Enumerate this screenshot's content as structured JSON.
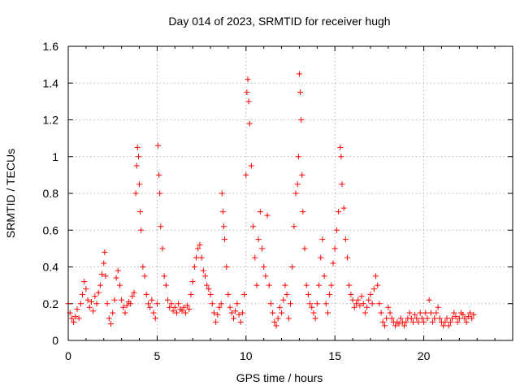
{
  "chart_data": {
    "type": "scatter",
    "title": "Day 014 of 2023, SRMTID for receiver hugh",
    "xlabel": "GPS time / hours",
    "ylabel": "SRMTID / TECUs",
    "xlim": [
      0,
      25
    ],
    "ylim": [
      0,
      1.6
    ],
    "x_ticks": [
      0,
      5,
      10,
      15,
      20
    ],
    "x_tick_labels": [
      "0",
      "5",
      "10",
      "15",
      "20"
    ],
    "y_ticks": [
      0,
      0.2,
      0.4,
      0.6,
      0.8,
      1.0,
      1.2,
      1.4,
      1.6
    ],
    "y_tick_labels": [
      "0",
      "0.2",
      "0.4",
      "0.6",
      "0.8",
      "1",
      "1.2",
      "1.4",
      "1.6"
    ],
    "grid": true,
    "marker": "+",
    "series": [
      {
        "name": "SRMTID",
        "color": "#ff0000",
        "points": [
          [
            0.0,
            0.2
          ],
          [
            0.1,
            0.15
          ],
          [
            0.2,
            0.12
          ],
          [
            0.3,
            0.1
          ],
          [
            0.4,
            0.13
          ],
          [
            0.5,
            0.17
          ],
          [
            0.6,
            0.12
          ],
          [
            0.7,
            0.2
          ],
          [
            0.8,
            0.25
          ],
          [
            0.9,
            0.32
          ],
          [
            1.0,
            0.28
          ],
          [
            1.1,
            0.22
          ],
          [
            1.2,
            0.18
          ],
          [
            1.3,
            0.21
          ],
          [
            1.4,
            0.16
          ],
          [
            1.5,
            0.24
          ],
          [
            1.6,
            0.2
          ],
          [
            1.7,
            0.26
          ],
          [
            1.8,
            0.3
          ],
          [
            1.9,
            0.36
          ],
          [
            2.0,
            0.42
          ],
          [
            2.05,
            0.48
          ],
          [
            2.1,
            0.35
          ],
          [
            2.2,
            0.2
          ],
          [
            2.3,
            0.12
          ],
          [
            2.4,
            0.09
          ],
          [
            2.5,
            0.15
          ],
          [
            2.6,
            0.22
          ],
          [
            2.7,
            0.34
          ],
          [
            2.8,
            0.38
          ],
          [
            2.9,
            0.3
          ],
          [
            3.0,
            0.22
          ],
          [
            3.1,
            0.18
          ],
          [
            3.2,
            0.15
          ],
          [
            3.3,
            0.19
          ],
          [
            3.4,
            0.21
          ],
          [
            3.5,
            0.2
          ],
          [
            3.6,
            0.24
          ],
          [
            3.7,
            0.26
          ],
          [
            3.8,
            0.8
          ],
          [
            3.85,
            0.95
          ],
          [
            3.9,
            1.05
          ],
          [
            3.95,
            1.0
          ],
          [
            4.0,
            0.85
          ],
          [
            4.05,
            0.7
          ],
          [
            4.1,
            0.6
          ],
          [
            4.2,
            0.4
          ],
          [
            4.3,
            0.35
          ],
          [
            4.4,
            0.25
          ],
          [
            4.5,
            0.2
          ],
          [
            4.6,
            0.18
          ],
          [
            4.7,
            0.22
          ],
          [
            4.8,
            0.15
          ],
          [
            4.9,
            0.12
          ],
          [
            5.0,
            0.2
          ],
          [
            5.05,
            1.06
          ],
          [
            5.1,
            0.9
          ],
          [
            5.15,
            0.8
          ],
          [
            5.2,
            0.62
          ],
          [
            5.3,
            0.5
          ],
          [
            5.4,
            0.35
          ],
          [
            5.5,
            0.3
          ],
          [
            5.6,
            0.22
          ],
          [
            5.7,
            0.18
          ],
          [
            5.8,
            0.2
          ],
          [
            5.9,
            0.16
          ],
          [
            6.0,
            0.18
          ],
          [
            6.1,
            0.15
          ],
          [
            6.2,
            0.2
          ],
          [
            6.3,
            0.17
          ],
          [
            6.4,
            0.16
          ],
          [
            6.5,
            0.18
          ],
          [
            6.6,
            0.15
          ],
          [
            6.7,
            0.19
          ],
          [
            6.8,
            0.17
          ],
          [
            6.9,
            0.25
          ],
          [
            7.0,
            0.32
          ],
          [
            7.1,
            0.4
          ],
          [
            7.2,
            0.45
          ],
          [
            7.3,
            0.5
          ],
          [
            7.4,
            0.52
          ],
          [
            7.5,
            0.45
          ],
          [
            7.6,
            0.38
          ],
          [
            7.7,
            0.35
          ],
          [
            7.8,
            0.3
          ],
          [
            7.9,
            0.28
          ],
          [
            8.0,
            0.25
          ],
          [
            8.1,
            0.2
          ],
          [
            8.2,
            0.15
          ],
          [
            8.3,
            0.1
          ],
          [
            8.4,
            0.14
          ],
          [
            8.5,
            0.18
          ],
          [
            8.6,
            0.2
          ],
          [
            8.65,
            0.8
          ],
          [
            8.7,
            0.7
          ],
          [
            8.75,
            0.62
          ],
          [
            8.8,
            0.55
          ],
          [
            8.9,
            0.4
          ],
          [
            9.0,
            0.25
          ],
          [
            9.1,
            0.18
          ],
          [
            9.2,
            0.15
          ],
          [
            9.3,
            0.12
          ],
          [
            9.4,
            0.16
          ],
          [
            9.5,
            0.2
          ],
          [
            9.6,
            0.14
          ],
          [
            9.7,
            0.1
          ],
          [
            9.8,
            0.15
          ],
          [
            9.9,
            0.25
          ],
          [
            10.0,
            0.9
          ],
          [
            10.05,
            1.35
          ],
          [
            10.1,
            1.42
          ],
          [
            10.15,
            1.3
          ],
          [
            10.2,
            1.18
          ],
          [
            10.3,
            0.95
          ],
          [
            10.4,
            0.62
          ],
          [
            10.5,
            0.45
          ],
          [
            10.6,
            0.3
          ],
          [
            10.7,
            0.55
          ],
          [
            10.8,
            0.7
          ],
          [
            10.9,
            0.5
          ],
          [
            11.0,
            0.4
          ],
          [
            11.1,
            0.35
          ],
          [
            11.2,
            0.68
          ],
          [
            11.3,
            0.3
          ],
          [
            11.4,
            0.2
          ],
          [
            11.5,
            0.15
          ],
          [
            11.6,
            0.1
          ],
          [
            11.7,
            0.08
          ],
          [
            11.8,
            0.12
          ],
          [
            11.9,
            0.18
          ],
          [
            12.0,
            0.15
          ],
          [
            12.1,
            0.22
          ],
          [
            12.2,
            0.3
          ],
          [
            12.3,
            0.25
          ],
          [
            12.4,
            0.12
          ],
          [
            12.5,
            0.2
          ],
          [
            12.6,
            0.4
          ],
          [
            12.7,
            0.62
          ],
          [
            12.8,
            0.8
          ],
          [
            12.9,
            0.85
          ],
          [
            12.95,
            1.0
          ],
          [
            13.0,
            1.45
          ],
          [
            13.05,
            1.35
          ],
          [
            13.1,
            1.2
          ],
          [
            13.15,
            0.9
          ],
          [
            13.2,
            0.7
          ],
          [
            13.3,
            0.5
          ],
          [
            13.4,
            0.3
          ],
          [
            13.5,
            0.25
          ],
          [
            13.6,
            0.2
          ],
          [
            13.7,
            0.18
          ],
          [
            13.8,
            0.15
          ],
          [
            13.9,
            0.12
          ],
          [
            14.0,
            0.2
          ],
          [
            14.1,
            0.3
          ],
          [
            14.2,
            0.45
          ],
          [
            14.3,
            0.55
          ],
          [
            14.4,
            0.35
          ],
          [
            14.5,
            0.2
          ],
          [
            14.6,
            0.15
          ],
          [
            14.7,
            0.25
          ],
          [
            14.8,
            0.3
          ],
          [
            14.9,
            0.42
          ],
          [
            15.0,
            0.5
          ],
          [
            15.1,
            0.6
          ],
          [
            15.2,
            0.7
          ],
          [
            15.3,
            1.05
          ],
          [
            15.35,
            1.0
          ],
          [
            15.4,
            0.85
          ],
          [
            15.5,
            0.72
          ],
          [
            15.6,
            0.55
          ],
          [
            15.7,
            0.45
          ],
          [
            15.8,
            0.3
          ],
          [
            15.9,
            0.25
          ],
          [
            16.0,
            0.22
          ],
          [
            16.1,
            0.18
          ],
          [
            16.2,
            0.2
          ],
          [
            16.3,
            0.22
          ],
          [
            16.4,
            0.19
          ],
          [
            16.5,
            0.24
          ],
          [
            16.6,
            0.2
          ],
          [
            16.7,
            0.15
          ],
          [
            16.8,
            0.18
          ],
          [
            16.9,
            0.22
          ],
          [
            17.0,
            0.25
          ],
          [
            17.1,
            0.2
          ],
          [
            17.2,
            0.28
          ],
          [
            17.3,
            0.35
          ],
          [
            17.4,
            0.3
          ],
          [
            17.5,
            0.2
          ],
          [
            17.6,
            0.15
          ],
          [
            17.7,
            0.1
          ],
          [
            17.8,
            0.08
          ],
          [
            17.9,
            0.12
          ],
          [
            18.0,
            0.18
          ],
          [
            18.1,
            0.15
          ],
          [
            18.2,
            0.12
          ],
          [
            18.3,
            0.1
          ],
          [
            18.4,
            0.08
          ],
          [
            18.5,
            0.1
          ],
          [
            18.6,
            0.09
          ],
          [
            18.7,
            0.12
          ],
          [
            18.8,
            0.1
          ],
          [
            18.9,
            0.08
          ],
          [
            19.0,
            0.1
          ],
          [
            19.1,
            0.12
          ],
          [
            19.2,
            0.15
          ],
          [
            19.3,
            0.12
          ],
          [
            19.4,
            0.1
          ],
          [
            19.5,
            0.14
          ],
          [
            19.6,
            0.12
          ],
          [
            19.7,
            0.1
          ],
          [
            19.8,
            0.15
          ],
          [
            19.9,
            0.12
          ],
          [
            20.0,
            0.1
          ],
          [
            20.1,
            0.15
          ],
          [
            20.2,
            0.12
          ],
          [
            20.3,
            0.22
          ],
          [
            20.4,
            0.15
          ],
          [
            20.5,
            0.1
          ],
          [
            20.6,
            0.12
          ],
          [
            20.7,
            0.15
          ],
          [
            20.8,
            0.18
          ],
          [
            20.9,
            0.12
          ],
          [
            21.0,
            0.1
          ],
          [
            21.1,
            0.08
          ],
          [
            21.2,
            0.1
          ],
          [
            21.3,
            0.12
          ],
          [
            21.4,
            0.08
          ],
          [
            21.5,
            0.1
          ],
          [
            21.6,
            0.12
          ],
          [
            21.7,
            0.15
          ],
          [
            21.8,
            0.13
          ],
          [
            21.9,
            0.1
          ],
          [
            22.0,
            0.12
          ],
          [
            22.1,
            0.15
          ],
          [
            22.2,
            0.14
          ],
          [
            22.3,
            0.12
          ],
          [
            22.4,
            0.1
          ],
          [
            22.5,
            0.13
          ],
          [
            22.6,
            0.15
          ],
          [
            22.7,
            0.12
          ],
          [
            22.8,
            0.14
          ]
        ]
      }
    ]
  }
}
